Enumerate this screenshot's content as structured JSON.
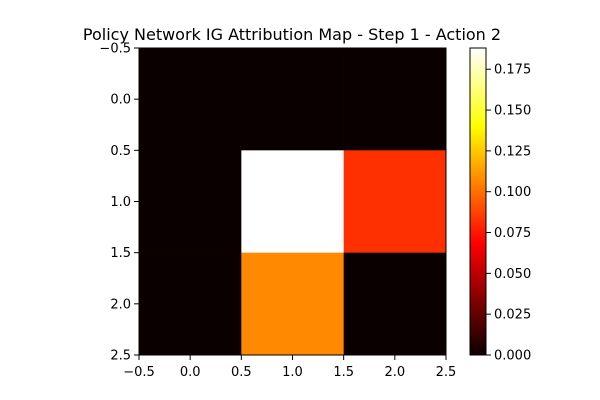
{
  "chart_data": {
    "type": "heatmap",
    "title": "Policy Network IG Attribution Map - Step 1 - Action 2",
    "xlabel": "",
    "ylabel": "",
    "colormap": "hot",
    "grid": false,
    "x_range": [
      -0.5,
      2.5
    ],
    "y_range": [
      -0.5,
      2.5
    ],
    "y_inverted": true,
    "x_ticks": [
      "−0.5",
      "0.0",
      "0.5",
      "1.0",
      "1.5",
      "2.0",
      "2.5"
    ],
    "y_ticks": [
      "−0.5",
      "0.0",
      "0.5",
      "1.0",
      "1.5",
      "2.0",
      "2.5"
    ],
    "values": [
      [
        0.0,
        0.0,
        0.0
      ],
      [
        0.0,
        0.188,
        0.082
      ],
      [
        0.0,
        0.107,
        0.0
      ]
    ],
    "colorbar": {
      "vmin": 0.0,
      "vmax": 0.188,
      "placement": "right",
      "ticks": [
        "0.000",
        "0.025",
        "0.050",
        "0.075",
        "0.100",
        "0.125",
        "0.150",
        "0.175"
      ]
    }
  }
}
